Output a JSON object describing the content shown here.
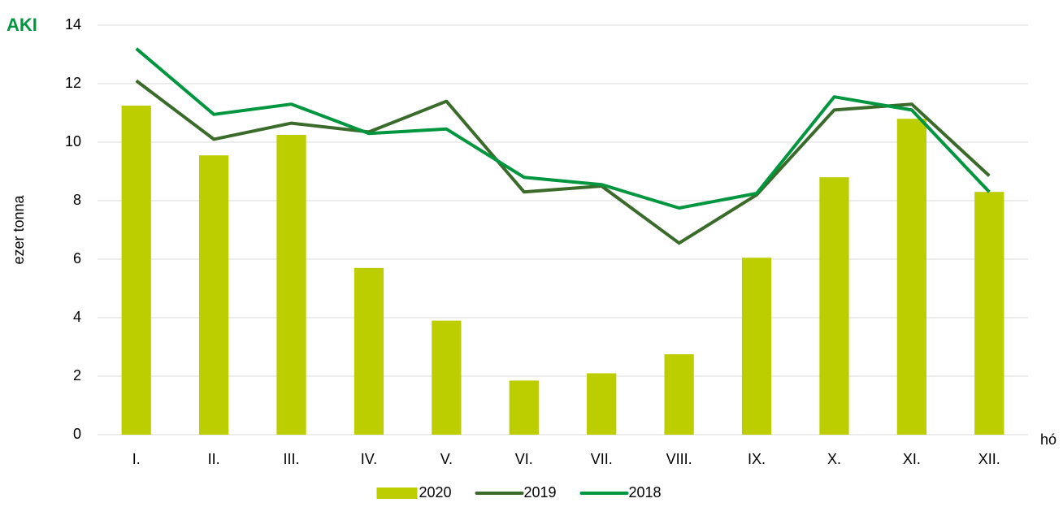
{
  "logo": "AKI",
  "chart_data": {
    "type": "bar-line",
    "y_label": "ezer tonna",
    "x_label": "hó",
    "categories": [
      "I.",
      "II.",
      "III.",
      "IV.",
      "V.",
      "VI.",
      "VII.",
      "VIII.",
      "IX.",
      "X.",
      "XI.",
      "XII."
    ],
    "series": [
      {
        "name": "2020",
        "type": "bar",
        "color": "#bccd00",
        "values": [
          11.25,
          9.55,
          10.25,
          5.7,
          3.9,
          1.85,
          2.1,
          2.75,
          6.05,
          8.8,
          10.8,
          8.3
        ]
      },
      {
        "name": "2019",
        "type": "line",
        "color": "#3a6b2a",
        "values": [
          12.1,
          10.1,
          10.65,
          10.35,
          11.4,
          8.3,
          8.5,
          6.55,
          8.2,
          11.1,
          11.3,
          8.85
        ]
      },
      {
        "name": "2018",
        "type": "line",
        "color": "#00963f",
        "values": [
          13.2,
          10.95,
          11.3,
          10.3,
          10.45,
          8.8,
          8.55,
          7.75,
          8.25,
          11.55,
          11.1,
          8.3
        ]
      }
    ],
    "ylim": [
      0,
      14
    ],
    "yticks": [
      0,
      2,
      4,
      6,
      8,
      10,
      12,
      14
    ],
    "grid": true,
    "legend": "bottom"
  }
}
